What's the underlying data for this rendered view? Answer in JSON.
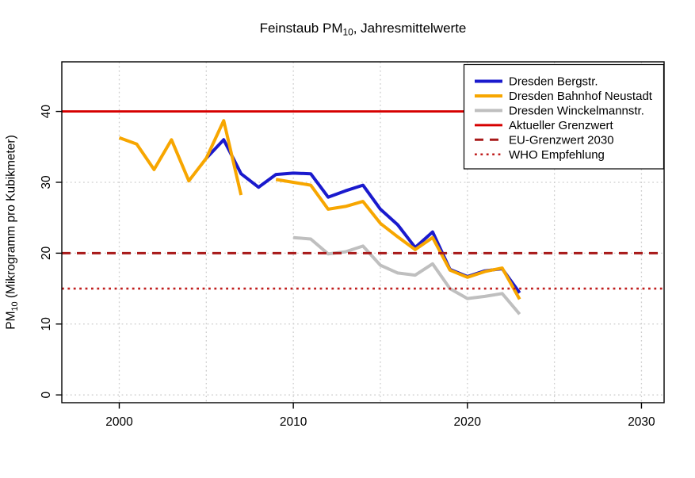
{
  "title": {
    "prefix": "Feinstaub PM",
    "sub": "10",
    "suffix": ", Jahresmittelwerte"
  },
  "y_axis_label": {
    "prefix": "PM",
    "sub": "10",
    "suffix": " (Mikrogramm pro Kubikmeter)"
  },
  "chart_data": {
    "type": "line",
    "title": "Feinstaub PM10, Jahresmittelwerte",
    "xlabel": "",
    "ylabel": "PM10 (Mikrogramm pro Kubikmeter)",
    "xlim": [
      1996.7,
      2031.3
    ],
    "ylim": [
      -1.1,
      47.0
    ],
    "x_ticks": [
      2000,
      2010,
      2020,
      2030
    ],
    "y_ticks": [
      0,
      10,
      20,
      30,
      40
    ],
    "x_grid": [
      2000,
      2005,
      2010,
      2015,
      2020,
      2025,
      2030
    ],
    "y_grid": [
      0,
      10,
      20,
      30,
      40
    ],
    "grid": true,
    "legend_position": "top-right",
    "x": [
      2000,
      2001,
      2002,
      2003,
      2004,
      2005,
      2006,
      2007,
      2008,
      2009,
      2010,
      2011,
      2012,
      2013,
      2014,
      2015,
      2016,
      2017,
      2018,
      2019,
      2020,
      2021,
      2022,
      2023
    ],
    "series": [
      {
        "name": "Dresden Bergstr.",
        "color": "#1a1acd",
        "values": [
          null,
          null,
          null,
          null,
          null,
          33.4,
          36.0,
          31.2,
          29.3,
          31.1,
          31.3,
          31.2,
          27.9,
          28.8,
          29.6,
          26.2,
          24.0,
          20.8,
          23.0,
          17.7,
          16.7,
          17.5,
          17.8,
          14.4
        ]
      },
      {
        "name": "Dresden Bahnhof Neustadt",
        "color": "#f7a600",
        "values": [
          36.3,
          35.4,
          31.8,
          36.0,
          30.2,
          33.4,
          38.7,
          28.2,
          null,
          30.4,
          30.0,
          29.6,
          26.2,
          26.6,
          27.3,
          24.2,
          22.3,
          20.5,
          22.2,
          17.6,
          16.6,
          17.4,
          17.9,
          13.5
        ]
      },
      {
        "name": "Dresden Winckelmannstr.",
        "color": "#bfbfbf",
        "values": [
          null,
          null,
          null,
          null,
          null,
          null,
          null,
          null,
          null,
          null,
          22.2,
          22.0,
          19.9,
          20.2,
          21.0,
          18.3,
          17.2,
          16.9,
          18.5,
          15.0,
          13.6,
          13.9,
          14.3,
          11.4
        ]
      }
    ],
    "reference_lines": [
      {
        "name": "Aktueller Grenzwert",
        "value": 40,
        "color": "#d60000",
        "style": "solid",
        "width": 2.8
      },
      {
        "name": "EU-Grenzwert 2030",
        "value": 20,
        "color": "#a81a1a",
        "style": "dashed",
        "width": 3
      },
      {
        "name": "WHO Empfehlung",
        "value": 15,
        "color": "#c01e1e",
        "style": "dotted",
        "width": 2.6
      }
    ],
    "legend": [
      {
        "label": "Dresden Bergstr.",
        "color": "#1a1acd",
        "style": "solid",
        "width": 4
      },
      {
        "label": "Dresden Bahnhof Neustadt",
        "color": "#f7a600",
        "style": "solid",
        "width": 4
      },
      {
        "label": "Dresden Winckelmannstr.",
        "color": "#bfbfbf",
        "style": "solid",
        "width": 4
      },
      {
        "label": "Aktueller Grenzwert",
        "color": "#d60000",
        "style": "solid",
        "width": 3
      },
      {
        "label": "EU-Grenzwert 2030",
        "color": "#a81a1a",
        "style": "dashed",
        "width": 3
      },
      {
        "label": "WHO Empfehlung",
        "color": "#c01e1e",
        "style": "dotted",
        "width": 2.6
      }
    ],
    "colors": {
      "grid": "#cdcdcd",
      "axis": "#000000",
      "background": "#ffffff"
    }
  }
}
